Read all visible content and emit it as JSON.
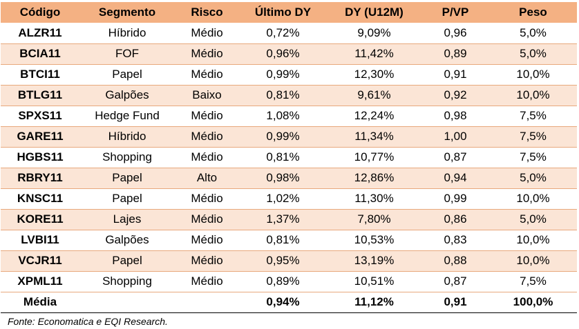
{
  "table": {
    "headers": [
      "Código",
      "Segmento",
      "Risco",
      "Último DY",
      "DY (U12M)",
      "P/VP",
      "Peso"
    ],
    "rows": [
      [
        "ALZR11",
        "Híbrido",
        "Médio",
        "0,72%",
        "9,09%",
        "0,96",
        "5,0%"
      ],
      [
        "BCIA11",
        "FOF",
        "Médio",
        "0,96%",
        "11,42%",
        "0,89",
        "5,0%"
      ],
      [
        "BTCI11",
        "Papel",
        "Médio",
        "0,99%",
        "12,30%",
        "0,91",
        "10,0%"
      ],
      [
        "BTLG11",
        "Galpões",
        "Baixo",
        "0,81%",
        "9,61%",
        "0,92",
        "10,0%"
      ],
      [
        "SPXS11",
        "Hedge Fund",
        "Médio",
        "1,08%",
        "12,24%",
        "0,98",
        "7,5%"
      ],
      [
        "GARE11",
        "Híbrido",
        "Médio",
        "0,99%",
        "11,34%",
        "1,00",
        "7,5%"
      ],
      [
        "HGBS11",
        "Shopping",
        "Médio",
        "0,81%",
        "10,77%",
        "0,87",
        "7,5%"
      ],
      [
        "RBRY11",
        "Papel",
        "Alto",
        "0,98%",
        "12,86%",
        "0,94",
        "5,0%"
      ],
      [
        "KNSC11",
        "Papel",
        "Médio",
        "1,02%",
        "11,30%",
        "0,99",
        "10,0%"
      ],
      [
        "KORE11",
        "Lajes",
        "Médio",
        "1,37%",
        "7,80%",
        "0,86",
        "5,0%"
      ],
      [
        "LVBI11",
        "Galpões",
        "Médio",
        "0,81%",
        "10,53%",
        "0,83",
        "10,0%"
      ],
      [
        "VCJR11",
        "Papel",
        "Médio",
        "0,95%",
        "13,19%",
        "0,88",
        "10,0%"
      ],
      [
        "XPML11",
        "Shopping",
        "Médio",
        "0,89%",
        "10,51%",
        "0,87",
        "7,5%"
      ]
    ],
    "footer": [
      "Média",
      "",
      "",
      "0,94%",
      "11,12%",
      "0,91",
      "100,0%"
    ]
  },
  "source": "Fonte: Economatica e EQI Research.",
  "colors": {
    "header_bg": "#f4b183",
    "alt_row_bg": "#fbe5d6",
    "row_border": "#e8a87c"
  }
}
